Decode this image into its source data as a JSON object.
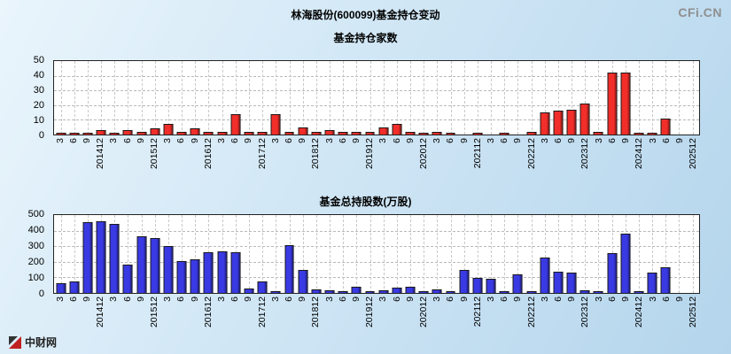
{
  "page": {
    "title": "林海股份(600099)基金持仓变动",
    "watermark": "CFi.CN",
    "site_logo_text": "中财网"
  },
  "chart_data": [
    {
      "type": "bar",
      "title": "基金持仓家数",
      "bar_color": "#f22e2a",
      "ylim": [
        0,
        50
      ],
      "yticks": [
        0,
        10,
        20,
        30,
        40,
        50
      ],
      "grid": true,
      "legend_position": "none",
      "categories": [
        "3",
        "6",
        "9",
        "201412",
        "3",
        "6",
        "9",
        "201512",
        "3",
        "6",
        "9",
        "201612",
        "3",
        "6",
        "9",
        "201712",
        "3",
        "6",
        "9",
        "201812",
        "3",
        "6",
        "9",
        "201912",
        "3",
        "6",
        "9",
        "202012",
        "3",
        "6",
        "9",
        "202112",
        "3",
        "6",
        "9",
        "202212",
        "3",
        "6",
        "9",
        "202312",
        "3",
        "6",
        "9",
        "202412",
        "3",
        "6",
        "9",
        "202512"
      ],
      "values": [
        1,
        1,
        1,
        3,
        1,
        3,
        2,
        4,
        7,
        2,
        4,
        2,
        2,
        14,
        2,
        2,
        14,
        2,
        5,
        2,
        3,
        2,
        2,
        2,
        5,
        7,
        2,
        1,
        2,
        1,
        0,
        1,
        0,
        1,
        0,
        2,
        15,
        16,
        17,
        21,
        2,
        42,
        42,
        1,
        1,
        11,
        0,
        0
      ]
    },
    {
      "type": "bar",
      "title": "基金总持股数(万股)",
      "bar_color": "#3a3ae4",
      "ylim": [
        0,
        500
      ],
      "yticks": [
        0,
        100,
        200,
        300,
        400,
        500
      ],
      "grid": true,
      "legend_position": "none",
      "categories": [
        "3",
        "6",
        "9",
        "201412",
        "3",
        "6",
        "9",
        "201512",
        "3",
        "6",
        "9",
        "201612",
        "3",
        "6",
        "9",
        "201712",
        "3",
        "6",
        "9",
        "201812",
        "3",
        "6",
        "9",
        "201912",
        "3",
        "6",
        "9",
        "202012",
        "3",
        "6",
        "9",
        "202112",
        "3",
        "6",
        "9",
        "202212",
        "3",
        "6",
        "9",
        "202312",
        "3",
        "6",
        "9",
        "202412",
        "3",
        "6",
        "9",
        "202512"
      ],
      "values": [
        60,
        75,
        455,
        460,
        445,
        180,
        365,
        355,
        300,
        205,
        215,
        260,
        265,
        260,
        30,
        75,
        10,
        305,
        150,
        20,
        15,
        10,
        40,
        5,
        15,
        35,
        40,
        5,
        20,
        5,
        145,
        95,
        90,
        10,
        120,
        10,
        230,
        135,
        130,
        15,
        10,
        255,
        380,
        10,
        130,
        165,
        0,
        0
      ]
    }
  ]
}
